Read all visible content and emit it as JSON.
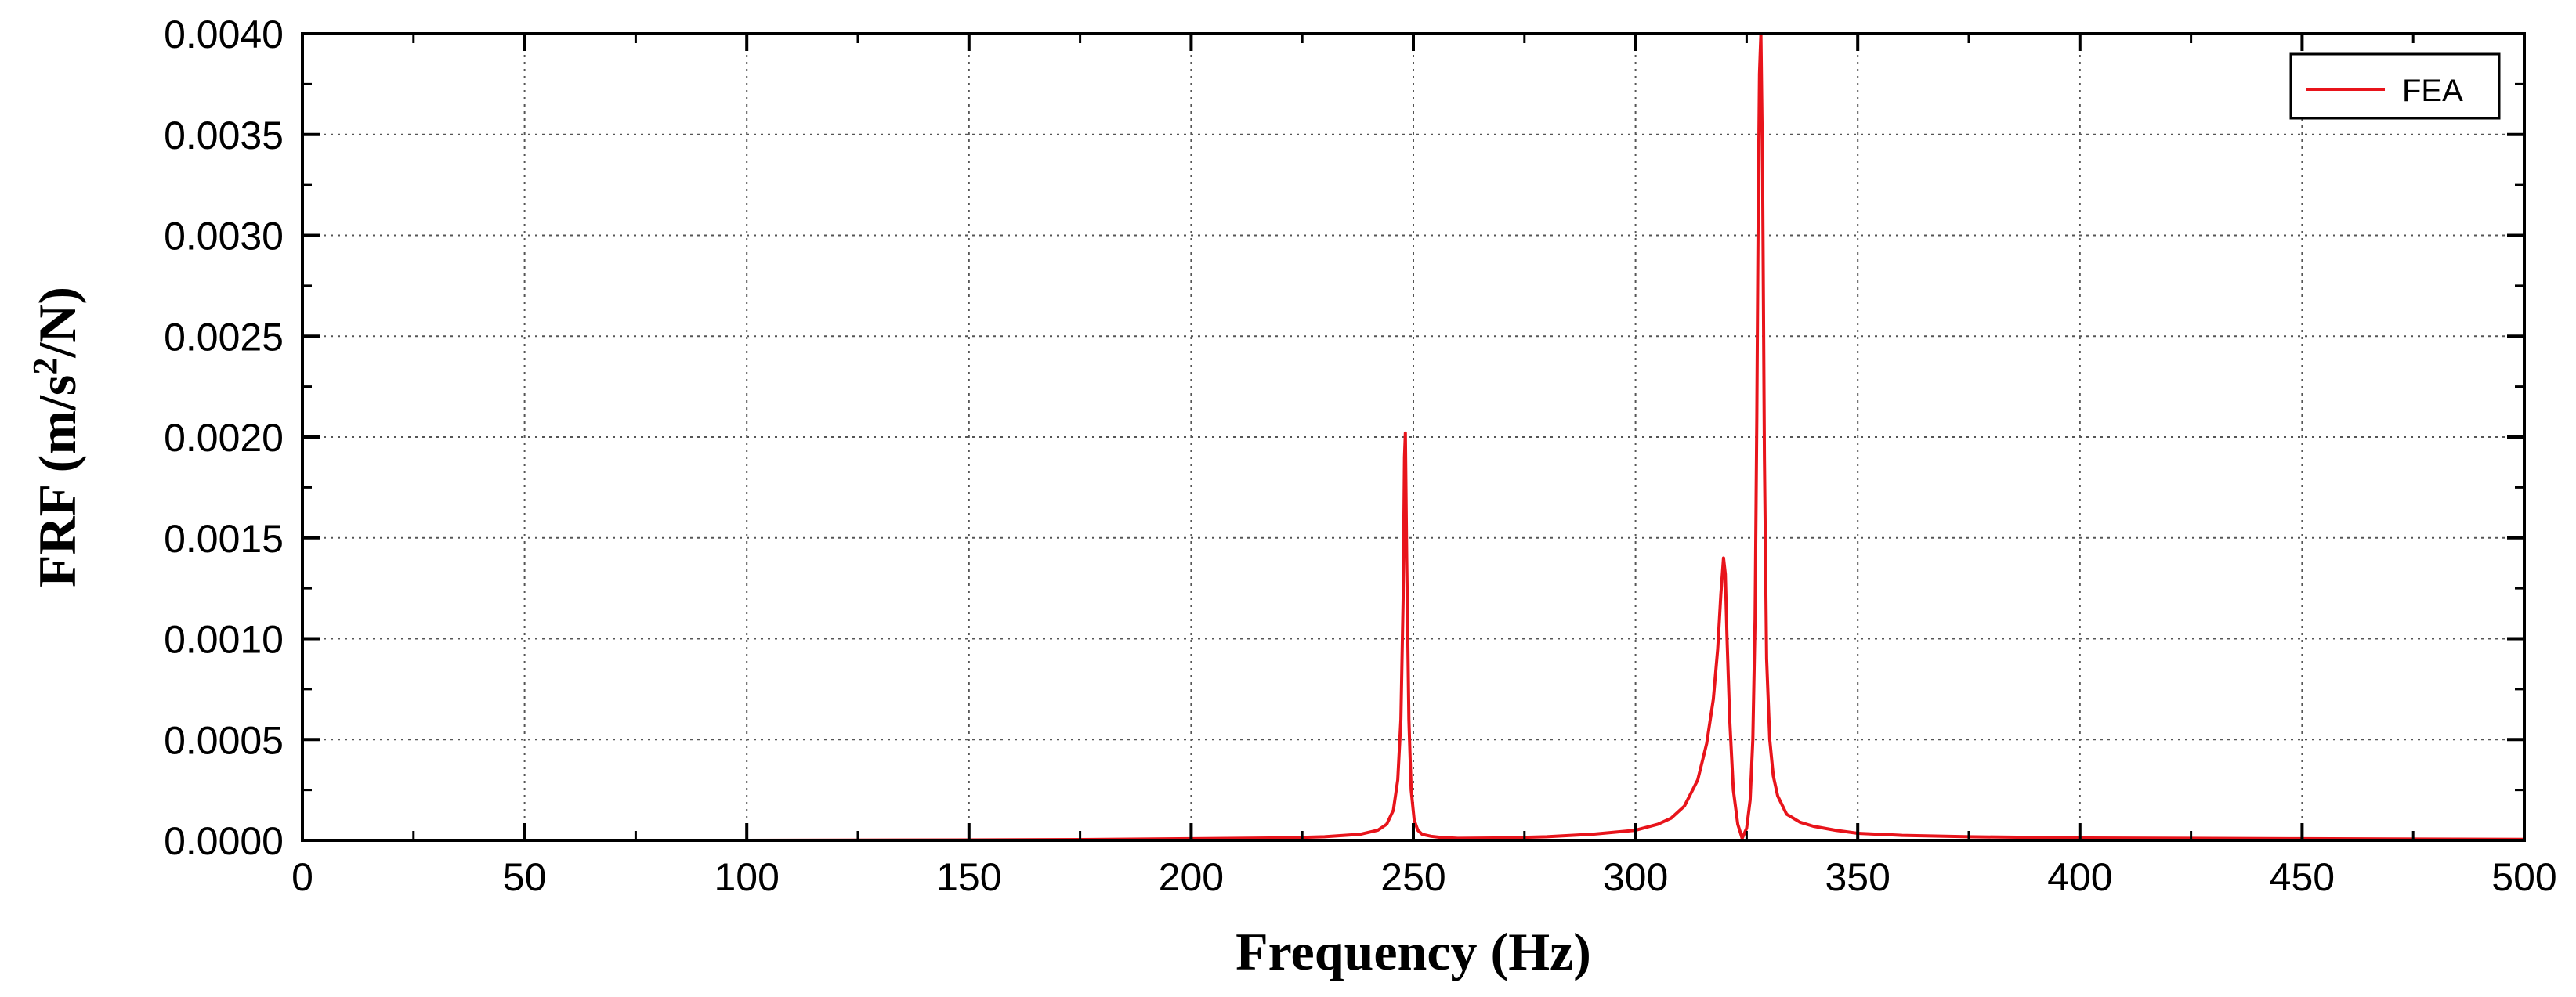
{
  "chart_data": {
    "type": "line",
    "xlabel": "Frequency (Hz)",
    "ylabel": {
      "prefix": "FRF (m/s",
      "superscript": "2",
      "suffix": "/N)"
    },
    "xlim": [
      0,
      500
    ],
    "ylim": [
      0,
      0.004
    ],
    "x_ticks": [
      "0",
      "50",
      "100",
      "150",
      "200",
      "250",
      "300",
      "350",
      "400",
      "450",
      "500"
    ],
    "y_ticks": [
      "0.0000",
      "0.0005",
      "0.0010",
      "0.0015",
      "0.0020",
      "0.0025",
      "0.0030",
      "0.0035",
      "0.0040"
    ],
    "grid": true,
    "legend_position": "top-right",
    "series": [
      {
        "name": "FEA",
        "color": "#e8141b",
        "x": [
          0,
          50,
          100,
          150,
          175,
          200,
          220,
          230,
          238,
          242,
          244,
          245.5,
          246.5,
          247.2,
          247.7,
          248.0,
          248.2,
          248.5,
          249.0,
          249.5,
          250.2,
          251,
          252,
          254,
          256,
          260,
          270,
          280,
          290,
          295,
          300,
          305,
          308,
          311,
          314,
          316,
          317.5,
          318.5,
          319.2,
          319.8,
          320.2,
          320.6,
          321.2,
          322,
          323,
          324,
          325,
          325.8,
          326.4,
          326.9,
          327.3,
          327.6,
          327.9,
          328.2,
          328.6,
          329.0,
          329.5,
          330.2,
          331,
          332,
          334,
          337,
          340,
          345,
          350,
          360,
          375,
          400,
          450,
          500
        ],
        "y": [
          0,
          0,
          0,
          2e-06,
          4e-06,
          8e-06,
          1.2e-05,
          1.8e-05,
          3e-05,
          5e-05,
          8e-05,
          0.00015,
          0.0003,
          0.0006,
          0.0012,
          0.0019,
          0.00202,
          0.0014,
          0.0006,
          0.00025,
          0.0001,
          5e-05,
          3e-05,
          2e-05,
          1.5e-05,
          1e-05,
          1.2e-05,
          1.8e-05,
          3e-05,
          4e-05,
          5e-05,
          8e-05,
          0.00011,
          0.00017,
          0.0003,
          0.00048,
          0.0007,
          0.00095,
          0.00122,
          0.0014,
          0.00132,
          0.001,
          0.0006,
          0.00025,
          8e-05,
          1e-05,
          6e-05,
          0.0002,
          0.0005,
          0.0011,
          0.0021,
          0.0031,
          0.0038,
          0.004,
          0.0033,
          0.0019,
          0.0009,
          0.0005,
          0.00032,
          0.00022,
          0.00013,
          9e-05,
          7e-05,
          5e-05,
          3.5e-05,
          2.5e-05,
          1.8e-05,
          1.2e-05,
          8e-06,
          5e-06
        ]
      }
    ]
  }
}
